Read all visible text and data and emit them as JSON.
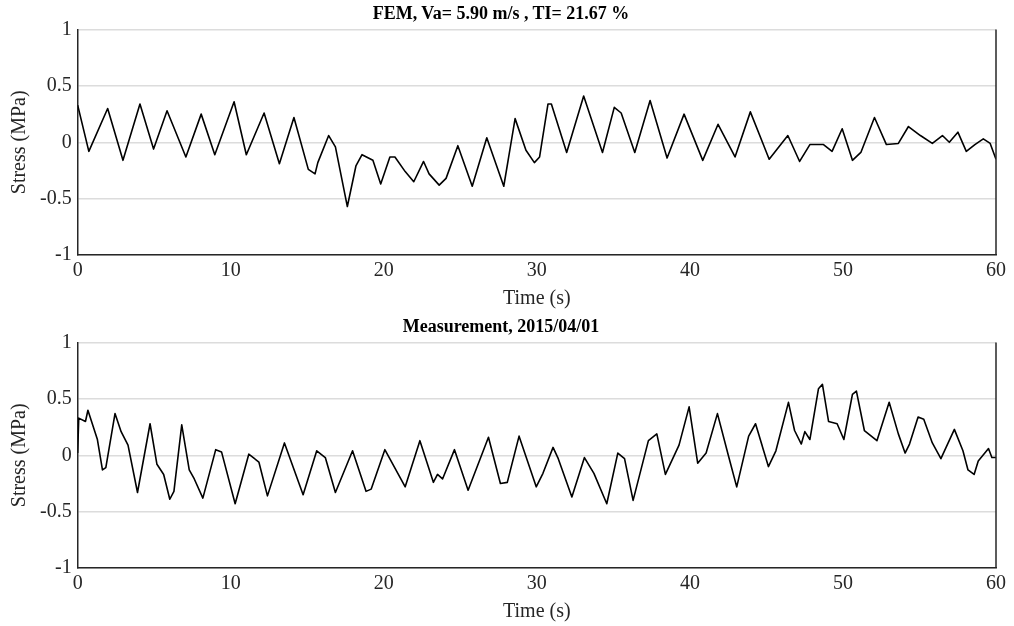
{
  "chart_data": [
    {
      "type": "line",
      "title": "FEM, Va= 5.90 m/s , TI= 21.67 %",
      "xlabel": "Time (s)",
      "ylabel": "Stress (MPa)",
      "xlim": [
        0,
        60
      ],
      "xticks": [
        0,
        10,
        20,
        30,
        40,
        50,
        60
      ],
      "ylim": [
        -1,
        1
      ],
      "yticks": [
        -1,
        -0.5,
        0,
        0.5,
        1
      ],
      "grid": "y",
      "x": [
        0,
        0.73,
        1.96,
        2.96,
        4.07,
        4.96,
        5.84,
        7.07,
        8.07,
        8.96,
        10.22,
        11.02,
        12.18,
        13.18,
        14.13,
        15.07,
        15.51,
        15.69,
        16.4,
        16.84,
        17.62,
        18.18,
        18.58,
        19.29,
        19.8,
        20.4,
        20.73,
        21.4,
        21.96,
        22.6,
        22.96,
        23.62,
        24.07,
        24.84,
        25.78,
        26.73,
        27.84,
        28.58,
        29.29,
        29.84,
        30.18,
        30.73,
        30.95,
        31.95,
        33.06,
        34.29,
        35.06,
        35.51,
        36.4,
        37.4,
        38.51,
        39.62,
        40.84,
        41.84,
        42.95,
        43.95,
        45.18,
        46.4,
        47.17,
        47.84,
        48.73,
        49.29,
        49.95,
        50.62,
        51.17,
        52.06,
        52.84,
        53.62,
        54.28,
        55.06,
        55.84,
        56.5,
        56.95,
        57.51,
        58.06,
        58.62,
        59.17,
        59.62,
        60
      ],
      "series": [
        {
          "color": "#000000",
          "values": [
            0.33,
            -0.08,
            0.3,
            -0.16,
            0.34,
            -0.06,
            0.28,
            -0.13,
            0.25,
            -0.11,
            0.36,
            -0.11,
            0.26,
            -0.19,
            0.22,
            -0.24,
            -0.28,
            -0.18,
            0.06,
            -0.04,
            -0.57,
            -0.21,
            -0.11,
            -0.16,
            -0.37,
            -0.13,
            -0.13,
            -0.26,
            -0.35,
            -0.17,
            -0.28,
            -0.38,
            -0.32,
            -0.03,
            -0.39,
            0.04,
            -0.39,
            0.21,
            -0.07,
            -0.18,
            -0.13,
            0.34,
            0.34,
            -0.09,
            0.41,
            -0.09,
            0.31,
            0.26,
            -0.09,
            0.37,
            -0.14,
            0.25,
            -0.16,
            0.16,
            -0.13,
            0.27,
            -0.15,
            0.06,
            -0.17,
            -0.02,
            -0.02,
            -0.08,
            0.12,
            -0.16,
            -0.09,
            0.22,
            -0.02,
            -0.01,
            0.14,
            0.06,
            -0.01,
            0.06,
            0,
            0.09,
            -0.08,
            -0.02,
            0.03,
            -0.01,
            -0.15
          ]
        }
      ]
    },
    {
      "type": "line",
      "title": "Measurement, 2015/04/01",
      "xlabel": "Time (s)",
      "ylabel": "Stress (MPa)",
      "xlim": [
        0,
        60
      ],
      "xticks": [
        0,
        10,
        20,
        30,
        40,
        50,
        60
      ],
      "ylim": [
        -1,
        1
      ],
      "yticks": [
        -1,
        -0.5,
        0,
        0.5,
        1
      ],
      "grid": "y",
      "x": [
        0,
        0.07,
        0.51,
        0.67,
        1.29,
        1.62,
        1.84,
        2.44,
        2.84,
        3.29,
        3.91,
        4.73,
        5.18,
        5.62,
        6.02,
        6.29,
        6.8,
        7.29,
        7.62,
        8.18,
        9.02,
        9.4,
        10.29,
        11.18,
        11.84,
        12.4,
        13.51,
        14.73,
        15.62,
        16.18,
        16.84,
        17.96,
        18.84,
        19.18,
        20.07,
        21.4,
        22.36,
        23.24,
        23.51,
        23.84,
        24.62,
        25.51,
        26.84,
        27.62,
        28.07,
        28.84,
        29.96,
        30.4,
        31.06,
        31.4,
        32.29,
        33.11,
        33.73,
        34.57,
        35.29,
        35.73,
        36.29,
        37.29,
        37.84,
        38.4,
        39.29,
        39.95,
        40.51,
        41.06,
        41.8,
        42.51,
        43.06,
        43.84,
        44.29,
        45.13,
        45.62,
        46.44,
        46.84,
        47.28,
        47.51,
        47.84,
        48.4,
        48.66,
        49.06,
        49.62,
        50.06,
        50.62,
        50.88,
        51.4,
        52.22,
        53.02,
        53.62,
        54.06,
        54.35,
        54.91,
        55.28,
        55.84,
        56.4,
        57.28,
        57.84,
        58.17,
        58.57,
        58.84,
        59.51,
        59.73,
        60
      ],
      "series": [
        {
          "color": "#000000",
          "values": [
            0.02,
            0.33,
            0.3,
            0.4,
            0.14,
            -0.13,
            -0.11,
            0.37,
            0.21,
            0.09,
            -0.33,
            0.28,
            -0.08,
            -0.17,
            -0.39,
            -0.32,
            0.27,
            -0.13,
            -0.21,
            -0.38,
            0.05,
            0.03,
            -0.43,
            0.01,
            -0.06,
            -0.36,
            0.11,
            -0.35,
            0.04,
            -0.02,
            -0.33,
            0.04,
            -0.32,
            -0.3,
            0.05,
            -0.28,
            0.13,
            -0.24,
            -0.17,
            -0.21,
            0.05,
            -0.31,
            0.16,
            -0.25,
            -0.24,
            0.17,
            -0.28,
            -0.16,
            0.07,
            -0.03,
            -0.37,
            -0.02,
            -0.16,
            -0.43,
            0.02,
            -0.03,
            -0.4,
            0.13,
            0.19,
            -0.17,
            0.09,
            0.43,
            -0.07,
            0.02,
            0.37,
            0,
            -0.28,
            0.17,
            0.28,
            -0.1,
            0.04,
            0.47,
            0.22,
            0.1,
            0.21,
            0.14,
            0.59,
            0.63,
            0.3,
            0.28,
            0.14,
            0.54,
            0.57,
            0.22,
            0.13,
            0.47,
            0.19,
            0.02,
            0.1,
            0.34,
            0.32,
            0.11,
            -0.03,
            0.23,
            0.04,
            -0.13,
            -0.17,
            -0.05,
            0.06,
            -0.02,
            -0.02
          ]
        }
      ]
    }
  ]
}
